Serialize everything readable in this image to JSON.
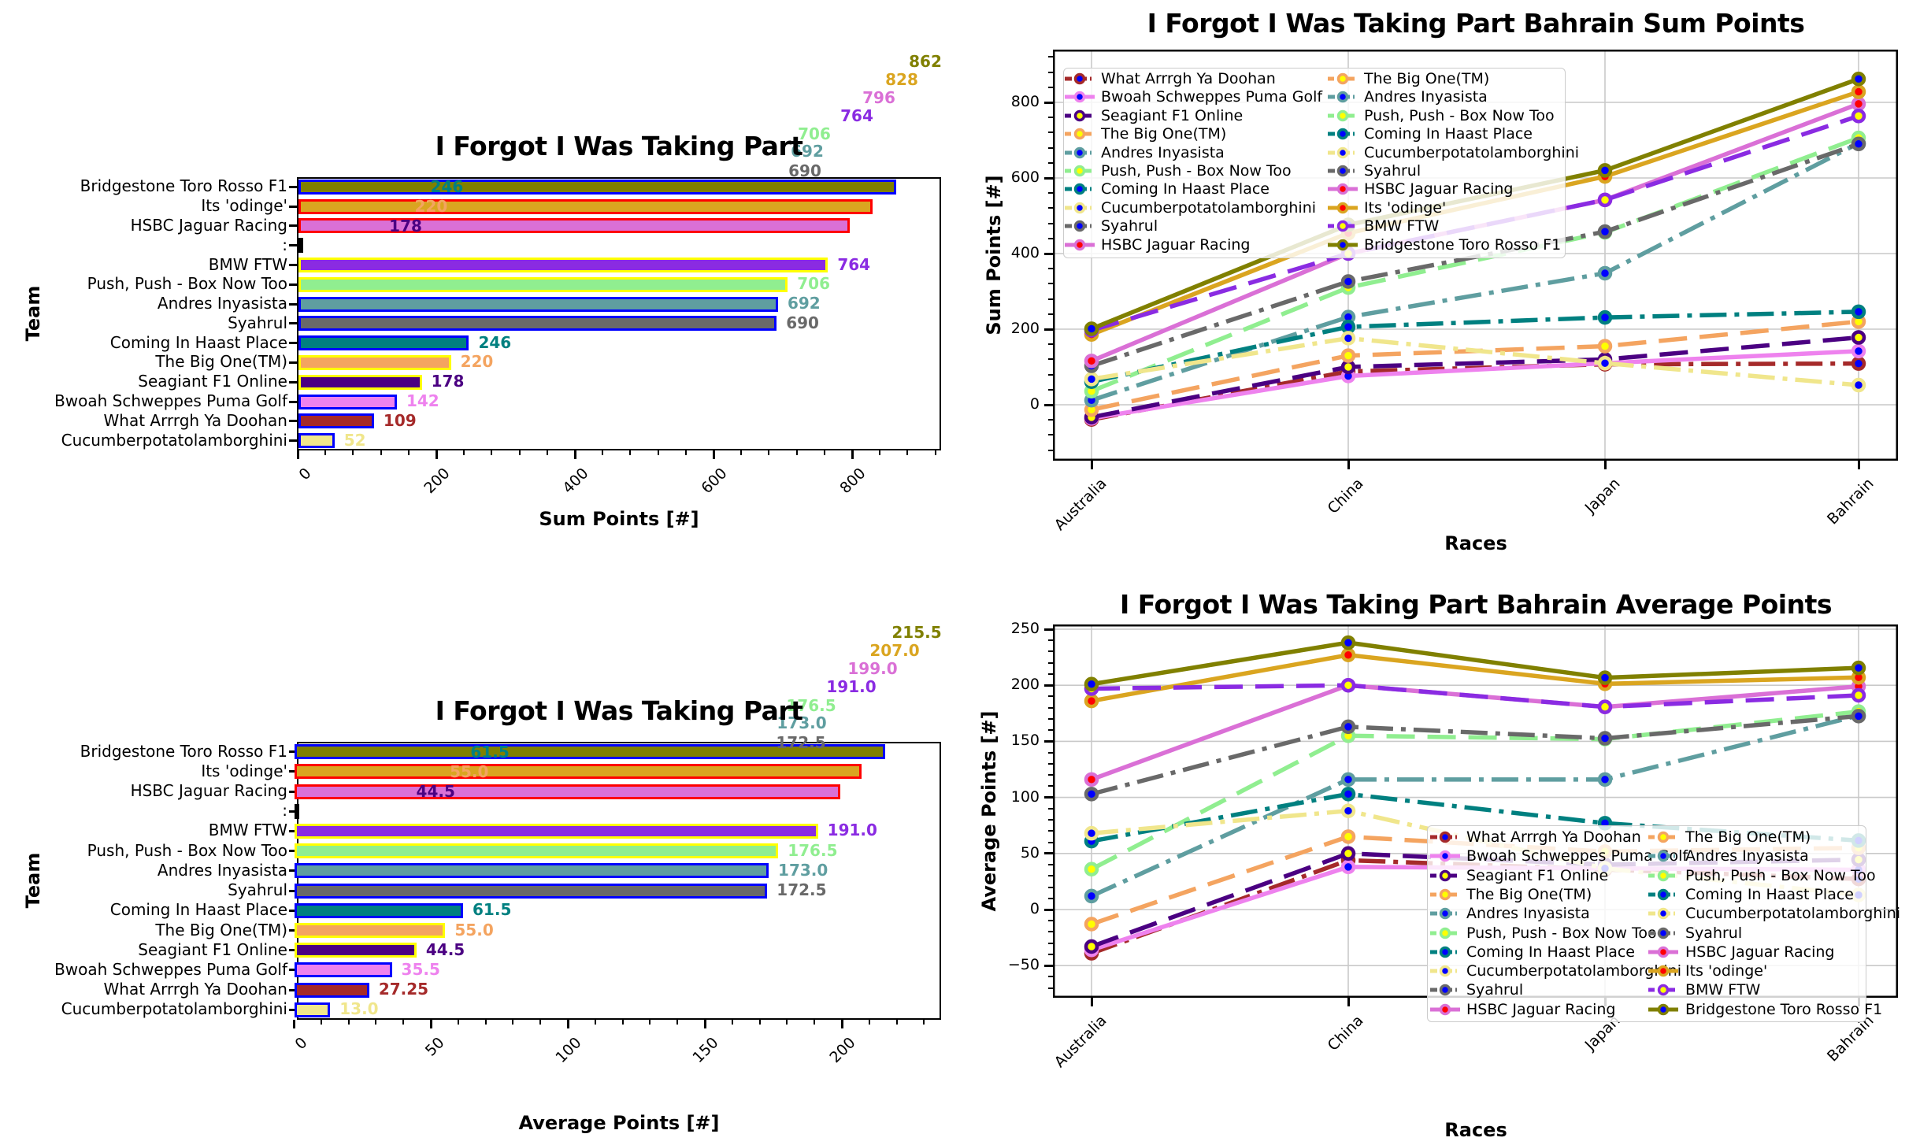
{
  "figure": {
    "background": "#ffffff"
  },
  "races": [
    "Australia",
    "China",
    "Japan",
    "Bahrain"
  ],
  "teams": [
    "Bridgestone Toro Rosso F1",
    "Its 'odinge'",
    "HSBC Jaguar Racing",
    ":",
    "BMW FTW",
    "Push, Push - Box Now Too",
    "Andres Inyasista",
    "Syahrul",
    "Coming In Haast Place",
    "The Big One(TM)",
    "Seagiant F1 Online",
    "Bwoah Schweppes Puma Golf",
    "What Arrrgh Ya Doohan",
    "Cucumberpotatolamborghini"
  ],
  "chart_data": [
    {
      "id": "sum-bar",
      "type": "bar",
      "title": "I Forgot I Was Taking Part",
      "xlabel": "Sum Points [#]",
      "ylabel": "Team",
      "xticks": [
        0,
        200,
        400,
        600,
        800
      ],
      "categories": [
        "Bridgestone Toro Rosso F1",
        "Its 'odinge'",
        "HSBC Jaguar Racing",
        ":",
        "BMW FTW",
        "Push, Push - Box Now Too",
        "Andres Inyasista",
        "Syahrul",
        "Coming In Haast Place",
        "The Big One(TM)",
        "Seagiant F1 Online",
        "Bwoah Schweppes Puma Golf",
        "What Arrrgh Ya Doohan",
        "Cucumberpotatolamborghini"
      ],
      "values": [
        862,
        828,
        796,
        5,
        764,
        706,
        692,
        690,
        246,
        220,
        178,
        142,
        109,
        52
      ],
      "bar_colors": [
        "#808000",
        "#DAA520",
        "#DA70D6",
        "#000000",
        "#8A2BE2",
        "#90EE90",
        "#5F9EA0",
        "#696969",
        "#008080",
        "#F4A460",
        "#4B0082",
        "#EE82EE",
        "#A52A2A",
        "#F0E68C"
      ],
      "edge_colors": [
        "#0000FF",
        "#FF0000",
        "#FF0000",
        "#000000",
        "#FFFF00",
        "#FFFF00",
        "#0000FF",
        "#0000FF",
        "#0000FF",
        "#FFFF00",
        "#FFFF00",
        "#0000FF",
        "#0000FF",
        "#0000FF"
      ],
      "side_labels": [
        "",
        "",
        "",
        "",
        "764",
        "706",
        "692",
        "690",
        "246",
        "220",
        "178",
        "142",
        "109",
        "52"
      ],
      "ghost_labels": [
        {
          "row": 0,
          "text": "246",
          "value": 246,
          "color": "#008080"
        },
        {
          "row": 1,
          "text": "220",
          "value": 220,
          "color": "#F4A460"
        },
        {
          "row": 2,
          "text": "178",
          "value": 178,
          "color": "#4B0082"
        }
      ],
      "cascade_labels": [
        {
          "text": "862",
          "color": "#808000"
        },
        {
          "text": "828",
          "color": "#DAA520"
        },
        {
          "text": "796",
          "color": "#DA70D6"
        },
        {
          "text": "764",
          "color": "#8A2BE2"
        },
        {
          "text": "706",
          "color": "#90EE90"
        },
        {
          "text": "692",
          "color": "#5F9EA0"
        },
        {
          "text": "690",
          "color": "#696969"
        }
      ]
    },
    {
      "id": "avg-bar",
      "type": "bar",
      "title": "I Forgot I Was Taking Part",
      "xlabel": "Average Points [#]",
      "ylabel": "Team",
      "xticks": [
        0,
        50,
        100,
        150,
        200
      ],
      "categories": [
        "Bridgestone Toro Rosso F1",
        "Its 'odinge'",
        "HSBC Jaguar Racing",
        ":",
        "BMW FTW",
        "Push, Push - Box Now Too",
        "Andres Inyasista",
        "Syahrul",
        "Coming In Haast Place",
        "The Big One(TM)",
        "Seagiant F1 Online",
        "Bwoah Schweppes Puma Golf",
        "What Arrrgh Ya Doohan",
        "Cucumberpotatolamborghini"
      ],
      "values": [
        215.5,
        207.0,
        199.0,
        1.2,
        191.0,
        176.5,
        173.0,
        172.5,
        61.5,
        55.0,
        44.5,
        35.5,
        27.25,
        13.0
      ],
      "bar_colors": [
        "#808000",
        "#DAA520",
        "#DA70D6",
        "#000000",
        "#8A2BE2",
        "#90EE90",
        "#5F9EA0",
        "#696969",
        "#008080",
        "#F4A460",
        "#4B0082",
        "#EE82EE",
        "#A52A2A",
        "#F0E68C"
      ],
      "edge_colors": [
        "#0000FF",
        "#FF0000",
        "#FF0000",
        "#000000",
        "#FFFF00",
        "#FFFF00",
        "#0000FF",
        "#0000FF",
        "#0000FF",
        "#FFFF00",
        "#FFFF00",
        "#0000FF",
        "#0000FF",
        "#0000FF"
      ],
      "side_labels": [
        "",
        "",
        "",
        "",
        "191.0",
        "176.5",
        "173.0",
        "172.5",
        "61.5",
        "55.0",
        "44.5",
        "35.5",
        "27.25",
        "13.0"
      ],
      "ghost_labels": [
        {
          "row": 0,
          "text": "61.5",
          "value": 61.5,
          "color": "#008080"
        },
        {
          "row": 1,
          "text": "55.0",
          "value": 55.0,
          "color": "#F4A460"
        },
        {
          "row": 2,
          "text": "44.5",
          "value": 44.5,
          "color": "#4B0082"
        }
      ],
      "cascade_labels": [
        {
          "text": "215.5",
          "color": "#808000"
        },
        {
          "text": "207.0",
          "color": "#DAA520"
        },
        {
          "text": "199.0",
          "color": "#DA70D6"
        },
        {
          "text": "191.0",
          "color": "#8A2BE2"
        },
        {
          "text": "176.5",
          "color": "#90EE90"
        },
        {
          "text": "173.0",
          "color": "#5F9EA0"
        },
        {
          "text": "172.5",
          "color": "#696969"
        }
      ]
    },
    {
      "id": "sum-line",
      "type": "line",
      "title": "I Forgot I Was Taking Part Bahrain Sum Points",
      "xlabel": "Races",
      "ylabel": "Sum Points [#]",
      "x": [
        "Australia",
        "China",
        "Japan",
        "Bahrain"
      ],
      "yticks": [
        0,
        200,
        400,
        600,
        800
      ],
      "grid": true,
      "series": [
        {
          "name": "What Arrrgh Ya Doohan",
          "color": "#A52A2A",
          "dash": "dashdot",
          "marker": "#0000FF",
          "values": [
            -39,
            88,
            107,
            109
          ]
        },
        {
          "name": "Bwoah Schweppes Puma Golf",
          "color": "#EE82EE",
          "dash": "solid",
          "marker": "#0000FF",
          "values": [
            -36,
            76,
            110,
            142
          ]
        },
        {
          "name": "Seagiant F1 Online",
          "color": "#4B0082",
          "dash": "dashed",
          "marker": "#FFFF00",
          "values": [
            -33,
            100,
            120,
            178
          ]
        },
        {
          "name": "The Big One(TM)",
          "color": "#F4A460",
          "dash": "dashed",
          "marker": "#FFFF00",
          "values": [
            -13,
            130,
            155,
            220
          ]
        },
        {
          "name": "Andres Inyasista",
          "color": "#5F9EA0",
          "dash": "dashdot",
          "marker": "#0000FF",
          "values": [
            12,
            232,
            348,
            692
          ]
        },
        {
          "name": "Push, Push - Box Now Too",
          "color": "#90EE90",
          "dash": "dashed",
          "marker": "#FFFF00",
          "values": [
            36,
            310,
            456,
            706
          ]
        },
        {
          "name": "Coming In Haast Place",
          "color": "#008080",
          "dash": "dashdot",
          "marker": "#0000FF",
          "values": [
            61,
            206,
            231,
            246
          ]
        },
        {
          "name": "Cucumberpotatolamborghini",
          "color": "#F0E68C",
          "dash": "dashdot",
          "marker": "#0000FF",
          "values": [
            68,
            176,
            110,
            52
          ]
        },
        {
          "name": "Syahrul",
          "color": "#696969",
          "dash": "dashdot",
          "marker": "#0000FF",
          "values": [
            103,
            326,
            458,
            690
          ]
        },
        {
          "name": "HSBC Jaguar Racing",
          "color": "#DA70D6",
          "dash": "solid",
          "marker": "#FF0000",
          "values": [
            116,
            400,
            542,
            796
          ]
        },
        {
          "name": "Its 'odinge'",
          "color": "#DAA520",
          "dash": "solid",
          "marker": "#FF0000",
          "values": [
            186,
            454,
            604,
            828
          ]
        },
        {
          "name": "BMW FTW",
          "color": "#8A2BE2",
          "dash": "dashed",
          "marker": "#FFFF00",
          "values": [
            197,
            400,
            542,
            764
          ]
        },
        {
          "name": "Bridgestone Toro Rosso F1",
          "color": "#808000",
          "dash": "solid",
          "marker": "#0000FF",
          "values": [
            201,
            476,
            620,
            862
          ]
        }
      ],
      "legend_col1": [
        "What Arrrgh Ya Doohan",
        "Bwoah Schweppes Puma Golf",
        "Seagiant F1 Online",
        "The Big One(TM)",
        "Andres Inyasista",
        "Push, Push - Box Now Too",
        "Coming In Haast Place",
        "Cucumberpotatolamborghini",
        "Syahrul",
        "HSBC Jaguar Racing"
      ],
      "legend_col2": [
        "The Big One(TM)",
        "Andres Inyasista",
        "Push, Push - Box Now Too",
        "Coming In Haast Place",
        "Cucumberpotatolamborghini",
        "Syahrul",
        "HSBC Jaguar Racing",
        "Its 'odinge'",
        "BMW FTW",
        "Bridgestone Toro Rosso F1"
      ]
    },
    {
      "id": "avg-line",
      "type": "line",
      "title": "I Forgot I Was Taking Part Bahrain Average Points",
      "xlabel": "Races",
      "ylabel": "Average Points [#]",
      "x": [
        "Australia",
        "China",
        "Japan",
        "Bahrain"
      ],
      "yticks": [
        -50,
        0,
        50,
        100,
        150,
        200,
        250
      ],
      "grid": true,
      "series": [
        {
          "name": "What Arrrgh Ya Doohan",
          "color": "#A52A2A",
          "dash": "dashdot",
          "marker": "#0000FF",
          "values": [
            -39,
            44,
            35.7,
            27.25
          ]
        },
        {
          "name": "Bwoah Schweppes Puma Golf",
          "color": "#EE82EE",
          "dash": "solid",
          "marker": "#0000FF",
          "values": [
            -36,
            38,
            36.7,
            35.5
          ]
        },
        {
          "name": "Seagiant F1 Online",
          "color": "#4B0082",
          "dash": "dashed",
          "marker": "#FFFF00",
          "values": [
            -33,
            50,
            40,
            44.5
          ]
        },
        {
          "name": "The Big One(TM)",
          "color": "#F4A460",
          "dash": "dashed",
          "marker": "#FFFF00",
          "values": [
            -13,
            65,
            51.7,
            55.0
          ]
        },
        {
          "name": "Andres Inyasista",
          "color": "#5F9EA0",
          "dash": "dashdot",
          "marker": "#0000FF",
          "values": [
            12,
            116,
            116,
            173.0
          ]
        },
        {
          "name": "Push, Push - Box Now Too",
          "color": "#90EE90",
          "dash": "dashed",
          "marker": "#FFFF00",
          "values": [
            36,
            155,
            152,
            176.5
          ]
        },
        {
          "name": "Coming In Haast Place",
          "color": "#008080",
          "dash": "dashdot",
          "marker": "#0000FF",
          "values": [
            61,
            103,
            77,
            61.5
          ]
        },
        {
          "name": "Cucumberpotatolamborghini",
          "color": "#F0E68C",
          "dash": "dashdot",
          "marker": "#0000FF",
          "values": [
            68,
            88,
            36.7,
            13.0
          ]
        },
        {
          "name": "Syahrul",
          "color": "#696969",
          "dash": "dashdot",
          "marker": "#0000FF",
          "values": [
            103,
            163,
            152.7,
            172.5
          ]
        },
        {
          "name": "HSBC Jaguar Racing",
          "color": "#DA70D6",
          "dash": "solid",
          "marker": "#FF0000",
          "values": [
            116,
            200,
            180.7,
            199.0
          ]
        },
        {
          "name": "Its 'odinge'",
          "color": "#DAA520",
          "dash": "solid",
          "marker": "#FF0000",
          "values": [
            186,
            227,
            201.3,
            207.0
          ]
        },
        {
          "name": "BMW FTW",
          "color": "#8A2BE2",
          "dash": "dashed",
          "marker": "#FFFF00",
          "values": [
            197,
            200,
            180.7,
            191.0
          ]
        },
        {
          "name": "Bridgestone Toro Rosso F1",
          "color": "#808000",
          "dash": "solid",
          "marker": "#0000FF",
          "values": [
            201,
            238,
            206.7,
            215.5
          ]
        }
      ],
      "legend_col1": [
        "What Arrrgh Ya Doohan",
        "Bwoah Schweppes Puma Golf",
        "Seagiant F1 Online",
        "The Big One(TM)",
        "Andres Inyasista",
        "Push, Push - Box Now Too",
        "Coming In Haast Place",
        "Cucumberpotatolamborghini",
        "Syahrul",
        "HSBC Jaguar Racing"
      ],
      "legend_col2": [
        "The Big One(TM)",
        "Andres Inyasista",
        "Push, Push - Box Now Too",
        "Coming In Haast Place",
        "Cucumberpotatolamborghini",
        "Syahrul",
        "HSBC Jaguar Racing",
        "Its 'odinge'",
        "BMW FTW",
        "Bridgestone Toro Rosso F1"
      ]
    }
  ]
}
